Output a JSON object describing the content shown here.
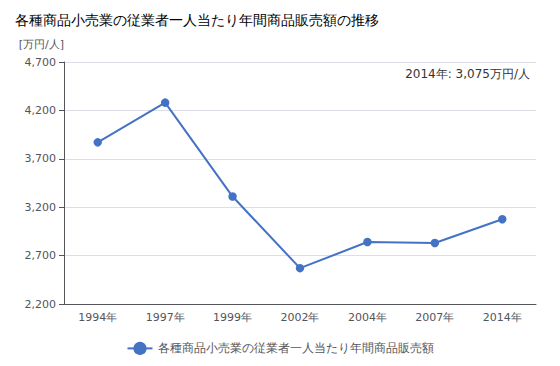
{
  "chart_data": {
    "type": "line",
    "title": "各種商品小売業の従業者一人当たり年間商品販売額の推移",
    "ylabel": "[万円/人]",
    "annotation": "2014年: 3,075万円/人",
    "categories": [
      "1994年",
      "1997年",
      "1999年",
      "2002年",
      "2004年",
      "2007年",
      "2014年"
    ],
    "series": [
      {
        "name": "各種商品小売業の従業者一人当たり年間商品販売額",
        "color": "#4472C4",
        "marker": "circle",
        "values": [
          3870,
          4280,
          3310,
          2570,
          2840,
          2830,
          3075
        ]
      }
    ],
    "ylim": [
      2200,
      4700
    ],
    "yticks": [
      {
        "value": 2200,
        "label": "2,200"
      },
      {
        "value": 2700,
        "label": "2,700"
      },
      {
        "value": 3200,
        "label": "3,200"
      },
      {
        "value": 3700,
        "label": "3,700"
      },
      {
        "value": 4200,
        "label": "4,200"
      },
      {
        "value": 4700,
        "label": "4,700"
      }
    ],
    "grid": true,
    "legend": "bottom"
  }
}
